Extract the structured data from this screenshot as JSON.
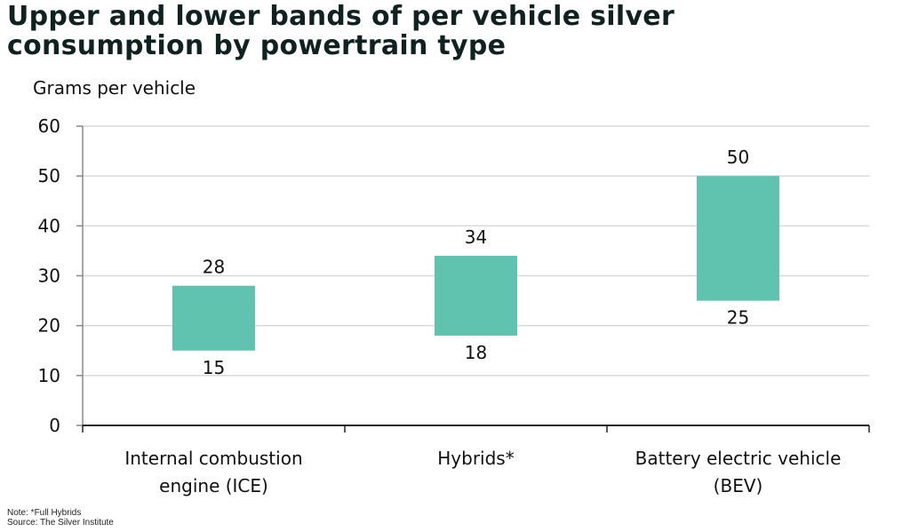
{
  "title_lines": [
    "Upper and lower bands of per vehicle silver",
    "consumption by powertrain type"
  ],
  "notes": {
    "note": "Note: *Full Hybrids",
    "source": "Source: The Silver Institute"
  },
  "chart_data": {
    "type": "bar",
    "subtype": "floating range",
    "title": "Upper and lower bands of per vehicle silver consumption by powertrain type",
    "ylabel": "Grams per vehicle",
    "xlabel": "",
    "ylim": [
      0,
      60
    ],
    "yticks": [
      "0",
      "10",
      "20",
      "30",
      "40",
      "50",
      "60"
    ],
    "grid": true,
    "categories": [
      [
        "Internal combustion",
        "engine (ICE)"
      ],
      [
        "Hybrids*"
      ],
      [
        "Battery electric vehicle",
        "(BEV)"
      ]
    ],
    "lower": [
      15,
      18,
      25
    ],
    "upper": [
      28,
      34,
      50
    ],
    "bar_color": "#5fc3b0"
  }
}
